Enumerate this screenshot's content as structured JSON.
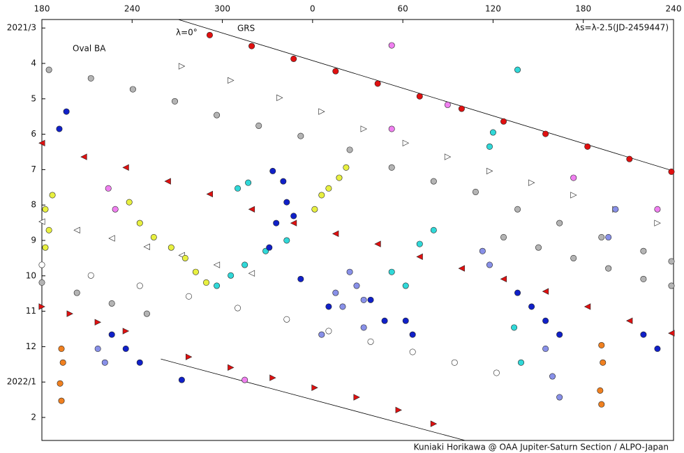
{
  "chart_data": {
    "type": "scatter",
    "xlim": [
      180,
      600
    ],
    "ylim": [
      2.76,
      14.65
    ],
    "y_inverted": true,
    "xticks": [
      180,
      240,
      300,
      {
        "value": 360,
        "label": "0"
      },
      {
        "value": 420,
        "label": "60"
      },
      {
        "value": 480,
        "label": "120"
      },
      {
        "value": 540,
        "label": "180"
      },
      {
        "value": 600,
        "label": "240"
      }
    ],
    "yticks": [
      {
        "value": 3,
        "label": "2021/3"
      },
      4,
      5,
      6,
      7,
      8,
      9,
      10,
      11,
      12,
      {
        "value": 13,
        "label": "2022/1"
      },
      {
        "value": 14,
        "label": "2"
      }
    ],
    "annotations": [
      "Oval BA",
      "λ=0°",
      "GRS",
      "λs=λ-2.5(JD-2459447)"
    ],
    "credit": "Kuniaki Horikawa @ OAA Jupiter-Saturn Section / ALPO-Japan",
    "lines": [
      {
        "color": "#000000",
        "x": [
          270.7,
          600
        ],
        "y": [
          2.76,
          7.04
        ]
      },
      {
        "color": "#000000",
        "x": [
          259.1,
          461.4
        ],
        "y": [
          12.35,
          14.65
        ]
      }
    ],
    "series": [
      {
        "color": "#e01010",
        "marker": "circle",
        "x": [
          291.6,
          319.5,
          347.4,
          375.3,
          403.3,
          431.2,
          459.1,
          487.0,
          514.9,
          542.8,
          570.7,
          598.6
        ],
        "y": [
          3.2,
          3.51,
          3.87,
          4.22,
          4.57,
          4.93,
          5.28,
          5.64,
          5.99,
          6.35,
          6.7,
          7.06
        ]
      },
      {
        "color": "#e01010",
        "marker": "triangle-left",
        "x": [
          180,
          207.9,
          235.8,
          263.7,
          291.6,
          319.5,
          347.4,
          375.3,
          403.3,
          431.2,
          459.1,
          487.0,
          514.9,
          542.8,
          570.7,
          598.6
        ],
        "y": [
          6.25,
          6.64,
          6.94,
          7.33,
          7.69,
          8.12,
          8.51,
          8.81,
          9.1,
          9.46,
          9.79,
          10.09,
          10.44,
          10.87,
          11.27,
          11.62
        ]
      },
      {
        "color": "#e01010",
        "marker": "triangle-right",
        "x": [
          180,
          198.6,
          217.2,
          235.8,
          277.7,
          305.6,
          333.5,
          361.4,
          389.3,
          417.2,
          440.5
        ],
        "y": [
          10.87,
          11.07,
          11.31,
          11.56,
          12.29,
          12.59,
          12.88,
          13.16,
          13.43,
          13.79,
          14.18
        ]
      },
      {
        "color": "#b4b4b4",
        "marker": "circle",
        "x": [
          184.7,
          212.6,
          240.5,
          268.4,
          296.3,
          324.2,
          352.1,
          384.7,
          412.6,
          440.5,
          468.4,
          496.3,
          524.2,
          552.1,
          580.0,
          598.6
        ],
        "y": [
          4.18,
          4.42,
          4.73,
          5.07,
          5.46,
          5.76,
          6.05,
          6.44,
          6.94,
          7.33,
          7.63,
          8.12,
          8.51,
          8.91,
          9.3,
          9.59
        ]
      },
      {
        "color": "#ffffff",
        "marker": "circle",
        "x": [
          180,
          212.6,
          245.1,
          277.7,
          310.2,
          342.8,
          370.7,
          398.6,
          426.5,
          454.4,
          482.3
        ],
        "y": [
          9.69,
          9.99,
          10.28,
          10.58,
          10.91,
          11.23,
          11.56,
          11.86,
          12.15,
          12.45,
          12.74
        ]
      },
      {
        "color": "#ffffff",
        "marker": "triangle-right",
        "x": [
          273.0,
          305.6,
          338.1,
          366.0,
          394.0,
          421.9,
          449.8,
          477.7,
          505.6,
          533.5,
          561.4,
          589.3
        ],
        "y": [
          4.08,
          4.48,
          4.97,
          5.36,
          5.85,
          6.25,
          6.64,
          7.04,
          7.37,
          7.72,
          8.12,
          8.51
        ]
      },
      {
        "color": "#ffffff",
        "marker": "triangle-left",
        "x": [
          180,
          203.3,
          226.5,
          249.8,
          273.0,
          296.3,
          319.5
        ],
        "y": [
          8.47,
          8.71,
          8.94,
          9.18,
          9.42,
          9.69,
          9.93
        ]
      },
      {
        "color": "#e8f040",
        "marker": "circle",
        "x": [
          182.3,
          184.7,
          182.3,
          187.0,
          238.1,
          245.1,
          254.4,
          266.0,
          275.3,
          282.3,
          289.3,
          361.4,
          366.0,
          370.7,
          377.7,
          382.3
        ],
        "y": [
          8.12,
          8.71,
          9.2,
          7.72,
          7.92,
          8.51,
          8.91,
          9.2,
          9.5,
          9.89,
          10.19,
          8.12,
          7.72,
          7.53,
          7.23,
          6.94
        ]
      },
      {
        "color": "#30d8d8",
        "marker": "circle",
        "x": [
          310.2,
          317.2,
          296.3,
          305.6,
          314.9,
          328.8,
          342.8,
          412.6,
          421.9,
          431.2,
          440.5,
          477.7,
          480.0,
          496.3,
          494.0,
          498.6
        ],
        "y": [
          7.53,
          7.37,
          10.28,
          9.99,
          9.69,
          9.3,
          9.0,
          9.89,
          10.28,
          9.1,
          8.71,
          6.35,
          5.95,
          4.18,
          11.46,
          12.45
        ]
      },
      {
        "color": "#1020c8",
        "marker": "circle",
        "x": [
          333.5,
          340.5,
          342.8,
          335.8,
          331.2,
          347.4,
          352.1,
          370.7,
          398.6,
          407.9,
          496.3,
          505.6,
          514.9,
          524.2,
          580.0,
          589.3,
          226.5,
          235.8,
          245.1,
          273.0,
          421.9,
          426.5,
          191.6,
          196.3
        ],
        "y": [
          7.04,
          7.33,
          7.92,
          8.51,
          9.2,
          8.31,
          10.09,
          10.87,
          10.68,
          11.27,
          10.48,
          10.87,
          11.27,
          11.66,
          11.66,
          12.06,
          11.66,
          12.06,
          12.45,
          12.94,
          11.27,
          11.66,
          5.85,
          5.36
        ]
      },
      {
        "color": "#8890e8",
        "marker": "circle",
        "x": [
          384.7,
          389.3,
          394.0,
          375.3,
          380.0,
          366.0,
          394.0,
          473.0,
          477.7,
          514.9,
          519.5,
          524.2,
          217.2,
          221.9,
          561.4,
          556.7
        ],
        "y": [
          9.89,
          10.28,
          10.68,
          10.48,
          10.87,
          11.66,
          11.46,
          9.3,
          9.69,
          12.06,
          12.84,
          13.43,
          12.06,
          12.45,
          8.12,
          8.91
        ]
      },
      {
        "color": "#f08020",
        "marker": "circle",
        "x": [
          193.0,
          194.0,
          192.1,
          193.0,
          552.1,
          553.0,
          551.2,
          552.1
        ],
        "y": [
          12.06,
          12.45,
          13.04,
          13.53,
          11.96,
          12.45,
          13.24,
          13.63
        ]
      },
      {
        "color": "#f080f0",
        "marker": "circle",
        "x": [
          224.2,
          228.8,
          412.6,
          412.6,
          449.8,
          314.9,
          533.5,
          589.3
        ],
        "y": [
          7.53,
          8.12,
          3.49,
          5.85,
          5.17,
          12.94,
          7.23,
          8.12
        ]
      },
      {
        "color": "#b4b4b4",
        "marker": "circle",
        "x": [
          487.0,
          510.2,
          533.5,
          556.7,
          580.0,
          598.6,
          180,
          203.3,
          226.5,
          249.8
        ],
        "y": [
          8.91,
          9.2,
          9.5,
          9.79,
          10.09,
          10.28,
          10.19,
          10.48,
          10.78,
          11.07
        ]
      }
    ]
  }
}
